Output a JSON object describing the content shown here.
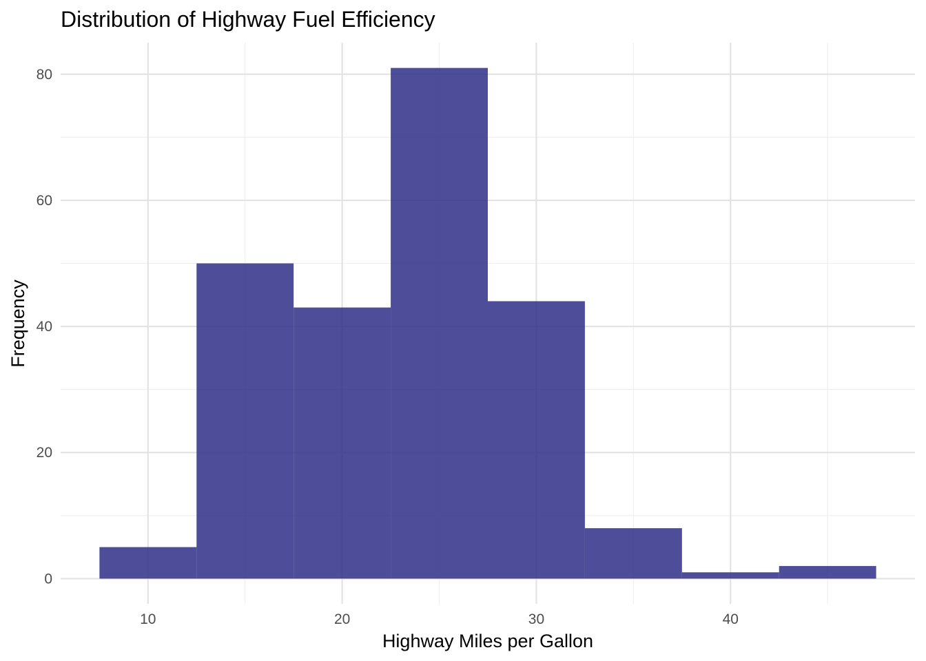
{
  "chart_data": {
    "type": "bar",
    "title": "Distribution of Highway Fuel Efficiency",
    "xlabel": "Highway Miles per Gallon",
    "ylabel": "Frequency",
    "bin_width": 5,
    "bins": [
      {
        "x0": 7.5,
        "x1": 12.5,
        "count": 5
      },
      {
        "x0": 12.5,
        "x1": 17.5,
        "count": 50
      },
      {
        "x0": 17.5,
        "x1": 22.5,
        "count": 43
      },
      {
        "x0": 22.5,
        "x1": 27.5,
        "count": 81
      },
      {
        "x0": 27.5,
        "x1": 32.5,
        "count": 44
      },
      {
        "x0": 32.5,
        "x1": 37.5,
        "count": 8
      },
      {
        "x0": 37.5,
        "x1": 42.5,
        "count": 1
      },
      {
        "x0": 42.5,
        "x1": 47.5,
        "count": 2
      }
    ],
    "xlim": [
      5.5,
      49.5
    ],
    "ylim": [
      -4,
      85
    ],
    "x_ticks": [
      10,
      20,
      30,
      40
    ],
    "x_tick_labels": [
      "10",
      "20",
      "30",
      "40"
    ],
    "y_ticks": [
      0,
      20,
      40,
      60,
      80
    ],
    "y_tick_labels": [
      "0",
      "20",
      "40",
      "60",
      "80"
    ],
    "grid": true,
    "legend": "none",
    "colors": {
      "bar_fill": "#2e2e87",
      "bar_opacity": 0.85,
      "grid": "#e3e3e3"
    }
  }
}
